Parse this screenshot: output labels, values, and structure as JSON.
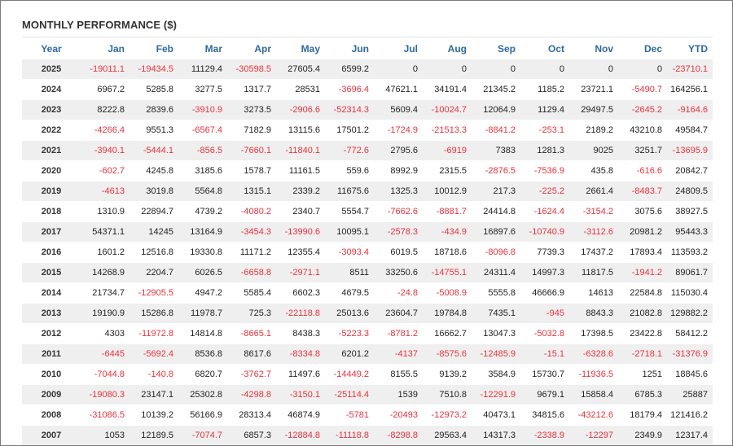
{
  "title": "MONTHLY PERFORMANCE ($)",
  "colors": {
    "header_text": "#2e6a9e",
    "negative": "#e8323c",
    "stripe": "#efefef"
  },
  "columns": [
    "Year",
    "Jan",
    "Feb",
    "Mar",
    "Apr",
    "May",
    "Jun",
    "Jul",
    "Aug",
    "Sep",
    "Oct",
    "Nov",
    "Dec",
    "YTD"
  ],
  "rows": [
    [
      "2025",
      "-19011.1",
      "-19434.5",
      "11129.4",
      "-30598.5",
      "27605.4",
      "6599.2",
      "0",
      "0",
      "0",
      "0",
      "0",
      "0",
      "-23710.1"
    ],
    [
      "2024",
      "6967.2",
      "5285.8",
      "3277.5",
      "1317.7",
      "28531",
      "-3696.4",
      "47621.1",
      "34191.4",
      "21345.2",
      "1185.2",
      "23721.1",
      "-5490.7",
      "164256.1"
    ],
    [
      "2023",
      "8222.8",
      "2839.6",
      "-3910.9",
      "3273.5",
      "-2906.6",
      "-52314.3",
      "5609.4",
      "-10024.7",
      "12064.9",
      "1129.4",
      "29497.5",
      "-2645.2",
      "-9164.6"
    ],
    [
      "2022",
      "-4266.4",
      "9551.3",
      "-6567.4",
      "7182.9",
      "13115.6",
      "17501.2",
      "-1724.9",
      "-21513.3",
      "-8841.2",
      "-253.1",
      "2189.2",
      "43210.8",
      "49584.7"
    ],
    [
      "2021",
      "-3940.1",
      "-5444.1",
      "-856.5",
      "-7660.1",
      "-11840.1",
      "-772.6",
      "2795.6",
      "-6919",
      "7383",
      "1281.3",
      "9025",
      "3251.7",
      "-13695.9"
    ],
    [
      "2020",
      "-602.7",
      "4245.8",
      "3185.6",
      "1578.7",
      "11161.5",
      "559.6",
      "8992.9",
      "2315.5",
      "-2876.5",
      "-7536.9",
      "435.8",
      "-616.6",
      "20842.7"
    ],
    [
      "2019",
      "-4613",
      "3019.8",
      "5564.8",
      "1315.1",
      "2339.2",
      "11675.6",
      "1325.3",
      "10012.9",
      "217.3",
      "-225.2",
      "2661.4",
      "-8483.7",
      "24809.5"
    ],
    [
      "2018",
      "1310.9",
      "22894.7",
      "4739.2",
      "-4080.2",
      "2340.7",
      "5554.7",
      "-7662.6",
      "-8881.7",
      "24414.8",
      "-1624.4",
      "-3154.2",
      "3075.6",
      "38927.5"
    ],
    [
      "2017",
      "54371.1",
      "14245",
      "13164.9",
      "-3454.3",
      "-13990.6",
      "10095.1",
      "-2578.3",
      "-434.9",
      "16897.6",
      "-10740.9",
      "-3112.6",
      "20981.2",
      "95443.3"
    ],
    [
      "2016",
      "1601.2",
      "12516.8",
      "19330.8",
      "11171.2",
      "12355.4",
      "-3093.4",
      "6019.5",
      "18718.6",
      "-8096.8",
      "7739.3",
      "17437.2",
      "17893.4",
      "113593.2"
    ],
    [
      "2015",
      "14268.9",
      "2204.7",
      "6026.5",
      "-6658.8",
      "-2971.1",
      "8511",
      "33250.6",
      "-14755.1",
      "24311.4",
      "14997.3",
      "11817.5",
      "-1941.2",
      "89061.7"
    ],
    [
      "2014",
      "21734.7",
      "-12905.5",
      "4947.2",
      "5585.4",
      "6602.3",
      "4679.5",
      "-24.8",
      "-5008.9",
      "5555.8",
      "46666.9",
      "14613",
      "22584.8",
      "115030.4"
    ],
    [
      "2013",
      "19190.9",
      "15286.8",
      "11978.7",
      "725.3",
      "-22118.8",
      "25013.6",
      "23604.7",
      "19784.8",
      "7435.1",
      "-945",
      "8843.3",
      "21082.8",
      "129882.2"
    ],
    [
      "2012",
      "4303",
      "-11972.8",
      "14814.8",
      "-8665.1",
      "8438.3",
      "-5223.3",
      "-8781.2",
      "16662.7",
      "13047.3",
      "-5032.8",
      "17398.5",
      "23422.8",
      "58412.2"
    ],
    [
      "2011",
      "-6445",
      "-5692.4",
      "8536.8",
      "8617.6",
      "-8334.8",
      "6201.2",
      "-4137",
      "-8575.6",
      "-12485.9",
      "-15.1",
      "-6328.6",
      "-2718.1",
      "-31376.9"
    ],
    [
      "2010",
      "-7044.8",
      "-140.8",
      "6820.7",
      "-3762.7",
      "11497.6",
      "-14449.2",
      "8155.5",
      "9139.2",
      "3584.9",
      "15730.7",
      "-11936.5",
      "1251",
      "18845.6"
    ],
    [
      "2009",
      "-19080.3",
      "23147.1",
      "25302.8",
      "-4298.8",
      "-3150.1",
      "-25114.4",
      "1539",
      "7510.8",
      "-12291.9",
      "9679.1",
      "15858.4",
      "6785.3",
      "25887"
    ],
    [
      "2008",
      "-31086.5",
      "10139.2",
      "56166.9",
      "28313.4",
      "46874.9",
      "-5781",
      "-20493",
      "-12973.2",
      "40473.1",
      "34815.6",
      "-43212.6",
      "18179.4",
      "121416.2"
    ],
    [
      "2007",
      "1053",
      "12189.5",
      "-7074.7",
      "6857.3",
      "-12884.8",
      "-11118.8",
      "-8298.8",
      "29563.4",
      "14317.3",
      "-2338.9",
      "-12297",
      "2349.9",
      "12317.4"
    ]
  ]
}
